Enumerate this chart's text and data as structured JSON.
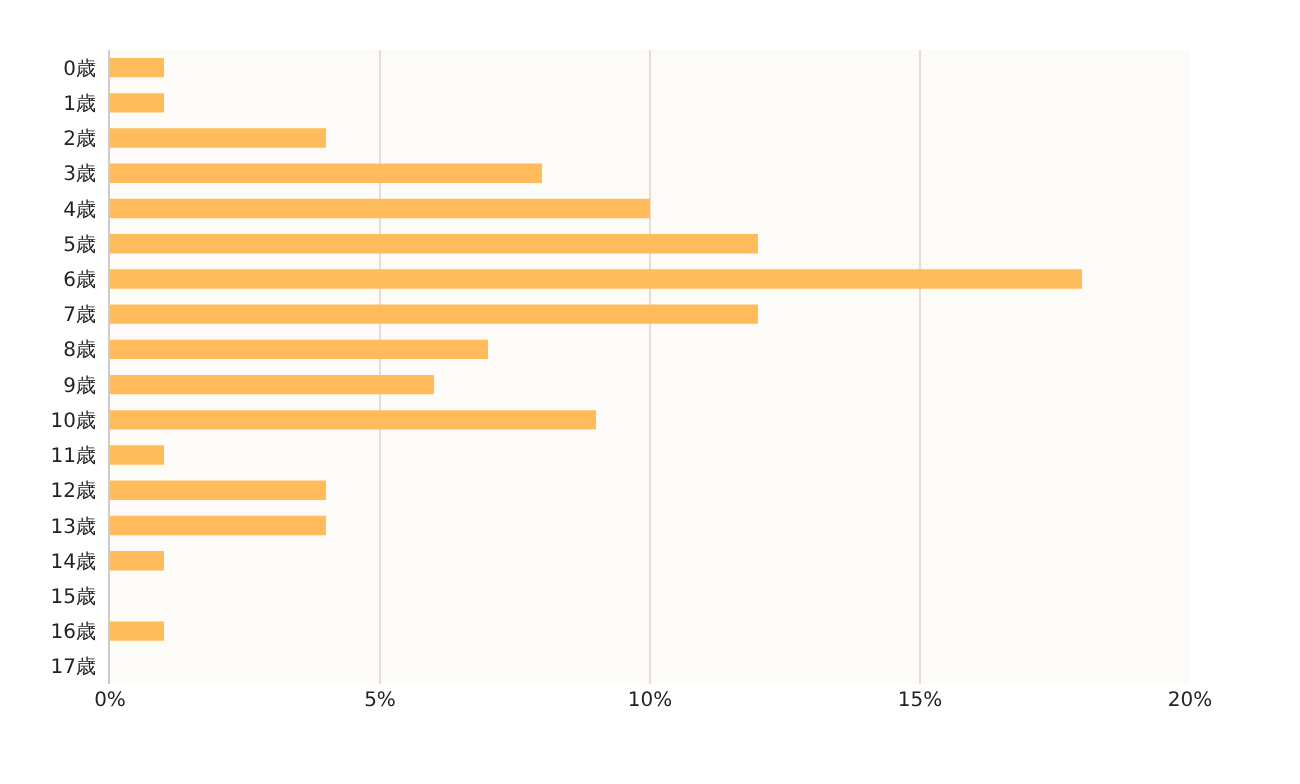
{
  "chart_data": {
    "type": "bar",
    "orientation": "horizontal",
    "categories": [
      "0歳",
      "1歳",
      "2歳",
      "3歳",
      "4歳",
      "5歳",
      "6歳",
      "7歳",
      "8歳",
      "9歳",
      "10歳",
      "11歳",
      "12歳",
      "13歳",
      "14歳",
      "15歳",
      "16歳",
      "17歳"
    ],
    "values": [
      1,
      1,
      4,
      8,
      10,
      12,
      18,
      12,
      7,
      6,
      9,
      1,
      4,
      4,
      1,
      0,
      1,
      0
    ],
    "color": "#ffbb5c",
    "xlim": [
      0,
      20
    ],
    "xticks": [
      {
        "value": 0,
        "label": "0%"
      },
      {
        "value": 5,
        "label": "5%"
      },
      {
        "value": 10,
        "label": "10%"
      },
      {
        "value": 15,
        "label": "15%"
      },
      {
        "value": 20,
        "label": "20%"
      }
    ],
    "grid": "x",
    "legend": false
  }
}
